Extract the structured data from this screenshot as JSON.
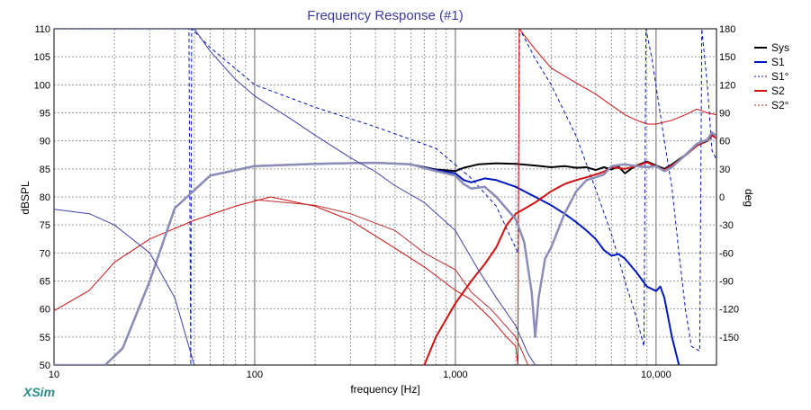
{
  "chart_data": {
    "type": "line",
    "title": "Frequency Response (#1)",
    "xlabel": "frequency [Hz]",
    "ylabel": "dBSPL",
    "y2label": "deg",
    "x_scale": "log",
    "xlim": [
      10,
      20000
    ],
    "ylim": [
      50,
      110
    ],
    "y2lim": [
      -180,
      180
    ],
    "x_ticks": [
      10,
      100,
      1000,
      10000
    ],
    "x_tick_labels": [
      "10",
      "100",
      "1,000",
      "10,000"
    ],
    "y_ticks": [
      110,
      105,
      100,
      95,
      90,
      85,
      80,
      75,
      70,
      65,
      60,
      55,
      50
    ],
    "y2_ticks": [
      180,
      150,
      120,
      90,
      60,
      30,
      0,
      -30,
      -60,
      -90,
      -120,
      -150
    ],
    "grid": true,
    "legend_position": "right",
    "watermark": "XSim",
    "series": [
      {
        "name": "Sys",
        "color": "#000000",
        "axis": "left",
        "style": "solid",
        "width": 2,
        "points": [
          [
            10,
            50
          ],
          [
            18,
            50
          ],
          [
            22,
            53
          ],
          [
            30,
            65
          ],
          [
            40,
            78
          ],
          [
            60,
            83.8
          ],
          [
            100,
            85.5
          ],
          [
            200,
            85.9
          ],
          [
            400,
            86.1
          ],
          [
            600,
            85.8
          ],
          [
            800,
            84.9
          ],
          [
            1000,
            84.6
          ],
          [
            1100,
            85.2
          ],
          [
            1300,
            85.8
          ],
          [
            1600,
            86
          ],
          [
            2000,
            85.9
          ],
          [
            2500,
            85.6
          ],
          [
            3000,
            85.3
          ],
          [
            3500,
            85.5
          ],
          [
            4000,
            85.2
          ],
          [
            4500,
            85.3
          ],
          [
            5000,
            84.8
          ],
          [
            5500,
            85.3
          ],
          [
            6000,
            84.9
          ],
          [
            6500,
            85.4
          ],
          [
            7000,
            84.2
          ],
          [
            7500,
            85
          ],
          [
            8000,
            85.6
          ],
          [
            9000,
            86.3
          ],
          [
            10000,
            85.6
          ],
          [
            11000,
            85
          ],
          [
            12000,
            85.8
          ],
          [
            14000,
            87.5
          ],
          [
            16000,
            89.2
          ],
          [
            18000,
            90
          ],
          [
            19000,
            91
          ],
          [
            20000,
            90.5
          ]
        ]
      },
      {
        "name": "S1",
        "color": "#0018c0",
        "axis": "left",
        "style": "solid",
        "width": 2,
        "points": [
          [
            10,
            50
          ],
          [
            18,
            50
          ],
          [
            22,
            53
          ],
          [
            30,
            65
          ],
          [
            40,
            78
          ],
          [
            60,
            83.8
          ],
          [
            100,
            85.5
          ],
          [
            200,
            85.9
          ],
          [
            400,
            86.1
          ],
          [
            600,
            85.8
          ],
          [
            800,
            84.8
          ],
          [
            1000,
            84.2
          ],
          [
            1100,
            83
          ],
          [
            1200,
            82.6
          ],
          [
            1400,
            83.3
          ],
          [
            1600,
            83
          ],
          [
            2000,
            81.8
          ],
          [
            2500,
            80
          ],
          [
            3000,
            78.5
          ],
          [
            3500,
            77
          ],
          [
            4000,
            75.5
          ],
          [
            4500,
            74
          ],
          [
            5000,
            72.5
          ],
          [
            5500,
            70.5
          ],
          [
            6000,
            69.5
          ],
          [
            6500,
            69.8
          ],
          [
            7000,
            69
          ],
          [
            8000,
            66.5
          ],
          [
            9000,
            64
          ],
          [
            10000,
            63.2
          ],
          [
            10500,
            64
          ],
          [
            11000,
            62
          ],
          [
            12000,
            55
          ],
          [
            13000,
            50
          ]
        ]
      },
      {
        "name": "S1°",
        "color": "#0018c0",
        "axis": "right",
        "style": "dashed",
        "width": 1,
        "points": [
          [
            10,
            180
          ],
          [
            47,
            180
          ],
          [
            47.5,
            0
          ],
          [
            48,
            -180
          ],
          [
            48.5,
            180
          ],
          [
            60,
            160
          ],
          [
            100,
            120
          ],
          [
            200,
            96
          ],
          [
            400,
            75
          ],
          [
            800,
            52
          ],
          [
            1200,
            20
          ],
          [
            1600,
            -10
          ],
          [
            2050,
            -60
          ],
          [
            2090,
            180
          ],
          [
            2500,
            148
          ],
          [
            3000,
            120
          ],
          [
            4000,
            65
          ],
          [
            5000,
            8
          ],
          [
            6000,
            -40
          ],
          [
            7000,
            -90
          ],
          [
            8000,
            -130
          ],
          [
            8700,
            -160
          ],
          [
            8900,
            180
          ],
          [
            9500,
            150
          ],
          [
            11000,
            60
          ],
          [
            12000,
            10
          ],
          [
            13000,
            -60
          ],
          [
            14000,
            -120
          ],
          [
            15000,
            -160
          ],
          [
            16500,
            -165
          ],
          [
            16900,
            180
          ],
          [
            18000,
            120
          ],
          [
            19000,
            50
          ],
          [
            20000,
            40
          ]
        ]
      },
      {
        "name": "S2",
        "color": "#d01010",
        "axis": "left",
        "style": "solid",
        "width": 2,
        "points": [
          [
            700,
            50
          ],
          [
            800,
            55
          ],
          [
            1000,
            61
          ],
          [
            1200,
            65
          ],
          [
            1400,
            68
          ],
          [
            1600,
            71
          ],
          [
            1800,
            75
          ],
          [
            2000,
            77
          ],
          [
            2500,
            79
          ],
          [
            3000,
            81
          ],
          [
            3500,
            82.3
          ],
          [
            4000,
            83
          ],
          [
            4500,
            83.5
          ],
          [
            5000,
            84
          ],
          [
            5500,
            84.5
          ],
          [
            6000,
            85.3
          ],
          [
            7000,
            85
          ],
          [
            8000,
            85.5
          ],
          [
            9000,
            86.2
          ],
          [
            10000,
            85.4
          ],
          [
            11000,
            84.8
          ],
          [
            12000,
            85.6
          ],
          [
            14000,
            87.4
          ],
          [
            16000,
            89.2
          ],
          [
            18000,
            90.1
          ],
          [
            19000,
            91
          ],
          [
            20000,
            90.5
          ]
        ]
      },
      {
        "name": "S2°",
        "color": "#d01010",
        "axis": "right",
        "style": "solid",
        "width": 1,
        "points": [
          [
            10,
            -122
          ],
          [
            15,
            -100
          ],
          [
            20,
            -70
          ],
          [
            30,
            -45
          ],
          [
            50,
            -25
          ],
          [
            80,
            -10
          ],
          [
            120,
            0
          ],
          [
            200,
            -10
          ],
          [
            300,
            -25
          ],
          [
            500,
            -55
          ],
          [
            700,
            -75
          ],
          [
            1000,
            -100
          ],
          [
            1200,
            -110
          ],
          [
            1500,
            -130
          ],
          [
            1800,
            -150
          ],
          [
            2000,
            -160
          ],
          [
            2050,
            -180
          ],
          [
            2080,
            180
          ],
          [
            2500,
            158
          ],
          [
            3000,
            138
          ],
          [
            4000,
            122
          ],
          [
            5000,
            110
          ],
          [
            6000,
            98
          ],
          [
            7000,
            88
          ],
          [
            8000,
            82
          ],
          [
            9000,
            78
          ],
          [
            10000,
            78
          ],
          [
            12000,
            82
          ],
          [
            14000,
            88
          ],
          [
            16000,
            94
          ],
          [
            18000,
            90
          ],
          [
            20000,
            88
          ]
        ]
      },
      {
        "name": "",
        "color": "#8c8cb8",
        "axis": "left",
        "style": "solid",
        "width": 2.5,
        "points": [
          [
            10,
            50
          ],
          [
            18,
            50
          ],
          [
            22,
            53
          ],
          [
            30,
            65
          ],
          [
            40,
            78
          ],
          [
            60,
            83.8
          ],
          [
            100,
            85.5
          ],
          [
            200,
            85.9
          ],
          [
            400,
            86.1
          ],
          [
            600,
            85.8
          ],
          [
            800,
            84.6
          ],
          [
            1000,
            83.8
          ],
          [
            1100,
            82.3
          ],
          [
            1200,
            81.5
          ],
          [
            1400,
            81.8
          ],
          [
            1600,
            80
          ],
          [
            2000,
            76
          ],
          [
            2200,
            72
          ],
          [
            2400,
            63
          ],
          [
            2500,
            55
          ],
          [
            2600,
            62
          ],
          [
            2800,
            69
          ],
          [
            3000,
            71
          ],
          [
            3500,
            77
          ],
          [
            4000,
            81
          ],
          [
            4500,
            83
          ],
          [
            5000,
            83.5
          ],
          [
            5500,
            84
          ],
          [
            6000,
            85.5
          ],
          [
            7000,
            85.8
          ],
          [
            8000,
            85.5
          ],
          [
            9000,
            85.3
          ],
          [
            10000,
            85.5
          ],
          [
            11000,
            84.6
          ],
          [
            12000,
            85.3
          ],
          [
            14000,
            87.5
          ],
          [
            16000,
            89.5
          ],
          [
            18000,
            90.2
          ],
          [
            19000,
            91.5
          ],
          [
            20000,
            90.8
          ]
        ]
      },
      {
        "name": "",
        "color": "#4040a8",
        "axis": "left",
        "style": "solid",
        "width": 1,
        "points": [
          [
            10,
            77.8
          ],
          [
            15,
            77
          ],
          [
            20,
            75
          ],
          [
            30,
            70
          ],
          [
            40,
            62
          ],
          [
            50,
            50
          ]
        ]
      },
      {
        "name": "",
        "color": "#4040a8",
        "axis": "left",
        "style": "solid",
        "width": 1,
        "points": [
          [
            50,
            110
          ],
          [
            60,
            106
          ],
          [
            80,
            101
          ],
          [
            100,
            98
          ],
          [
            150,
            94
          ],
          [
            200,
            91
          ],
          [
            300,
            87
          ],
          [
            400,
            84.5
          ],
          [
            500,
            82
          ],
          [
            700,
            79
          ],
          [
            1000,
            74
          ],
          [
            1300,
            67
          ],
          [
            1600,
            62
          ],
          [
            2000,
            57
          ],
          [
            2300,
            52
          ],
          [
            2500,
            50
          ]
        ]
      },
      {
        "name": "",
        "color": "#c03030",
        "axis": "left",
        "style": "solid",
        "width": 1,
        "points": [
          [
            100,
            79.5
          ],
          [
            200,
            78.5
          ],
          [
            300,
            77
          ],
          [
            500,
            74
          ],
          [
            700,
            70
          ],
          [
            1000,
            67
          ],
          [
            1200,
            63
          ],
          [
            1500,
            60
          ],
          [
            2000,
            55
          ],
          [
            2300,
            50
          ]
        ]
      }
    ]
  }
}
